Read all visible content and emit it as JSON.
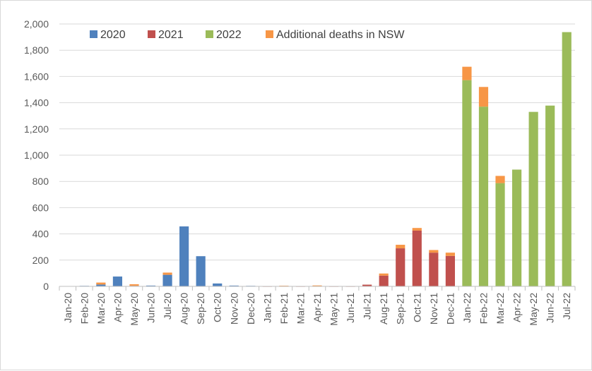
{
  "chart_data": {
    "type": "bar",
    "stacked": true,
    "title": "",
    "xlabel": "",
    "ylabel": "",
    "ylim": [
      0,
      2000
    ],
    "yticks": [
      0,
      200,
      400,
      600,
      800,
      1000,
      1200,
      1400,
      1600,
      1800,
      2000
    ],
    "ytick_labels": [
      "0",
      "200",
      "400",
      "600",
      "800",
      "1,000",
      "1,200",
      "1,400",
      "1,600",
      "1,800",
      "2,000"
    ],
    "grid": true,
    "legend_position": "top",
    "categories": [
      "Jan-20",
      "Feb-20",
      "Mar-20",
      "Apr-20",
      "May-20",
      "Jun-20",
      "Jul-20",
      "Aug-20",
      "Sep-20",
      "Oct-20",
      "Nov-20",
      "Dec-20",
      "Jan-21",
      "Feb-21",
      "Mar-21",
      "Apr-21",
      "May-21",
      "Jun-21",
      "Jul-21",
      "Aug-21",
      "Sep-21",
      "Oct-21",
      "Nov-21",
      "Dec-21",
      "Jan-22",
      "Feb-22",
      "Mar-22",
      "Apr-22",
      "May-22",
      "Jun-22",
      "Jul-22"
    ],
    "series": [
      {
        "name": "2020",
        "color": "#4f81bd",
        "values": [
          0,
          4,
          14,
          75,
          4,
          6,
          88,
          457,
          230,
          22,
          6,
          4,
          0,
          0,
          0,
          0,
          0,
          0,
          0,
          0,
          0,
          0,
          0,
          0,
          0,
          0,
          0,
          0,
          0,
          0,
          0
        ]
      },
      {
        "name": "2021",
        "color": "#c0504d",
        "values": [
          0,
          0,
          0,
          0,
          0,
          0,
          0,
          0,
          0,
          0,
          0,
          0,
          1,
          0,
          1,
          4,
          1,
          1,
          13,
          82,
          290,
          425,
          257,
          232,
          0,
          0,
          0,
          0,
          0,
          0,
          0
        ]
      },
      {
        "name": "2022",
        "color": "#9bbb59",
        "values": [
          0,
          0,
          0,
          0,
          0,
          0,
          0,
          0,
          0,
          0,
          0,
          0,
          0,
          0,
          0,
          0,
          0,
          0,
          0,
          0,
          0,
          0,
          0,
          0,
          1572,
          1370,
          787,
          890,
          1330,
          1378,
          1938
        ]
      },
      {
        "name": "Additional deaths in NSW",
        "color": "#f79646",
        "values": [
          0,
          0,
          15,
          0,
          12,
          0,
          17,
          0,
          0,
          0,
          0,
          0,
          0,
          5,
          0,
          3,
          0,
          0,
          0,
          16,
          27,
          20,
          20,
          25,
          102,
          150,
          55,
          0,
          0,
          0,
          0
        ]
      }
    ]
  }
}
